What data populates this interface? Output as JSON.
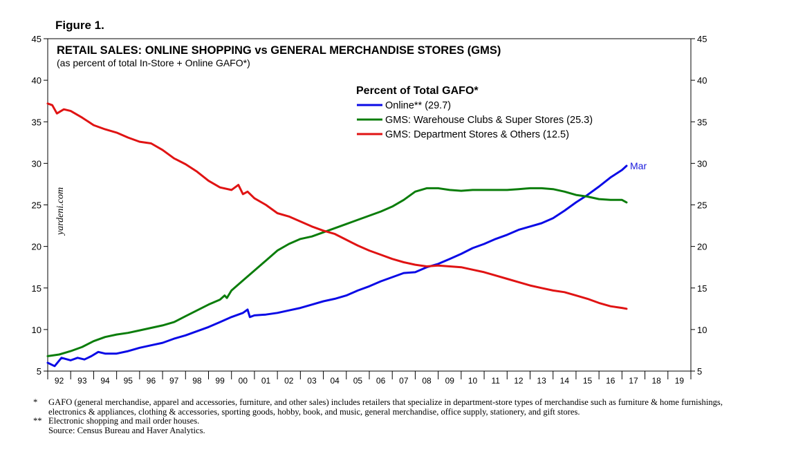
{
  "figure_label": "Figure 1.",
  "chart_data": {
    "type": "line",
    "title": "RETAIL SALES: ONLINE SHOPPING vs GENERAL MERCHANDISE STORES (GMS)",
    "subtitle": "(as percent of total In-Store + Online GAFO*)",
    "legend_title": "Percent of Total GAFO*",
    "legend_position": "top-center",
    "watermark": "yardeni.com",
    "xlabel": "",
    "ylabel": "",
    "xlim": [
      1992,
      2020
    ],
    "ylim": [
      5,
      45
    ],
    "y_ticks": [
      5,
      10,
      15,
      20,
      25,
      30,
      35,
      40,
      45
    ],
    "x_tick_labels": [
      "92",
      "93",
      "94",
      "95",
      "96",
      "97",
      "98",
      "99",
      "00",
      "01",
      "02",
      "03",
      "04",
      "05",
      "06",
      "07",
      "08",
      "09",
      "10",
      "11",
      "12",
      "13",
      "14",
      "15",
      "16",
      "17",
      "18",
      "19"
    ],
    "annotation": {
      "text": "Mar",
      "x": 2017.2,
      "y": 29.7,
      "color": "#1a1adc"
    },
    "series": [
      {
        "name": "Online** (29.7)",
        "color": "#0a0ae6",
        "x": [
          1992.0,
          1992.3,
          1992.6,
          1993.0,
          1993.3,
          1993.6,
          1993.9,
          1994.2,
          1994.5,
          1995.0,
          1995.5,
          1996.0,
          1996.5,
          1997.0,
          1997.5,
          1998.0,
          1998.5,
          1999.0,
          1999.5,
          2000.0,
          2000.5,
          2000.7,
          2000.8,
          2001.0,
          2001.5,
          2002.0,
          2002.5,
          2003.0,
          2003.5,
          2004.0,
          2004.5,
          2005.0,
          2005.5,
          2006.0,
          2006.5,
          2007.0,
          2007.5,
          2008.0,
          2008.5,
          2009.0,
          2009.5,
          2010.0,
          2010.5,
          2011.0,
          2011.5,
          2012.0,
          2012.5,
          2013.0,
          2013.5,
          2014.0,
          2014.5,
          2015.0,
          2015.5,
          2016.0,
          2016.5,
          2017.0,
          2017.2
        ],
        "values": [
          6.0,
          5.6,
          6.6,
          6.3,
          6.6,
          6.4,
          6.8,
          7.3,
          7.1,
          7.1,
          7.4,
          7.8,
          8.1,
          8.4,
          8.9,
          9.3,
          9.8,
          10.3,
          10.9,
          11.5,
          12.0,
          12.4,
          11.5,
          11.7,
          11.8,
          12.0,
          12.3,
          12.6,
          13.0,
          13.4,
          13.7,
          14.1,
          14.7,
          15.2,
          15.8,
          16.3,
          16.8,
          16.9,
          17.5,
          17.9,
          18.5,
          19.1,
          19.8,
          20.3,
          20.9,
          21.4,
          22.0,
          22.4,
          22.8,
          23.4,
          24.3,
          25.3,
          26.2,
          27.2,
          28.3,
          29.2,
          29.7
        ]
      },
      {
        "name": "GMS: Warehouse Clubs & Super Stores (25.3)",
        "color": "#0b7d0b",
        "x": [
          1992.0,
          1992.5,
          1993.0,
          1993.5,
          1994.0,
          1994.5,
          1995.0,
          1995.5,
          1996.0,
          1996.5,
          1997.0,
          1997.5,
          1998.0,
          1998.5,
          1999.0,
          1999.5,
          1999.7,
          1999.8,
          2000.0,
          2000.5,
          2001.0,
          2001.5,
          2002.0,
          2002.5,
          2003.0,
          2003.5,
          2004.0,
          2004.5,
          2005.0,
          2005.5,
          2006.0,
          2006.5,
          2007.0,
          2007.5,
          2008.0,
          2008.5,
          2009.0,
          2009.5,
          2010.0,
          2010.5,
          2011.0,
          2011.5,
          2012.0,
          2012.5,
          2013.0,
          2013.5,
          2014.0,
          2014.5,
          2015.0,
          2015.5,
          2016.0,
          2016.5,
          2017.0,
          2017.2
        ],
        "values": [
          6.8,
          7.0,
          7.4,
          7.9,
          8.6,
          9.1,
          9.4,
          9.6,
          9.9,
          10.2,
          10.5,
          10.9,
          11.6,
          12.3,
          13.0,
          13.6,
          14.1,
          13.8,
          14.7,
          15.9,
          17.1,
          18.3,
          19.5,
          20.3,
          20.9,
          21.2,
          21.7,
          22.2,
          22.7,
          23.2,
          23.7,
          24.2,
          24.8,
          25.6,
          26.6,
          27.0,
          27.0,
          26.8,
          26.7,
          26.8,
          26.8,
          26.8,
          26.8,
          26.9,
          27.0,
          27.0,
          26.9,
          26.6,
          26.2,
          26.0,
          25.7,
          25.6,
          25.6,
          25.3
        ]
      },
      {
        "name": "GMS: Department Stores & Others (12.5)",
        "color": "#e01313",
        "x": [
          1992.0,
          1992.2,
          1992.4,
          1992.7,
          1993.0,
          1993.5,
          1994.0,
          1994.5,
          1995.0,
          1995.5,
          1996.0,
          1996.5,
          1997.0,
          1997.5,
          1998.0,
          1998.5,
          1999.0,
          1999.5,
          2000.0,
          2000.3,
          2000.5,
          2000.7,
          2001.0,
          2001.5,
          2002.0,
          2002.5,
          2003.0,
          2003.5,
          2004.0,
          2004.5,
          2005.0,
          2005.5,
          2006.0,
          2006.5,
          2007.0,
          2007.5,
          2008.0,
          2008.5,
          2009.0,
          2009.5,
          2010.0,
          2010.5,
          2011.0,
          2011.5,
          2012.0,
          2012.5,
          2013.0,
          2013.5,
          2014.0,
          2014.5,
          2015.0,
          2015.5,
          2016.0,
          2016.5,
          2017.0,
          2017.2
        ],
        "values": [
          37.2,
          37.0,
          36.0,
          36.5,
          36.3,
          35.5,
          34.6,
          34.1,
          33.7,
          33.1,
          32.6,
          32.4,
          31.6,
          30.6,
          29.9,
          29.0,
          27.9,
          27.1,
          26.8,
          27.4,
          26.3,
          26.6,
          25.8,
          25.0,
          24.0,
          23.6,
          23.0,
          22.4,
          21.9,
          21.5,
          20.8,
          20.1,
          19.5,
          19.0,
          18.5,
          18.1,
          17.8,
          17.6,
          17.7,
          17.6,
          17.5,
          17.2,
          16.9,
          16.5,
          16.1,
          15.7,
          15.3,
          15.0,
          14.7,
          14.5,
          14.1,
          13.7,
          13.2,
          12.8,
          12.6,
          12.5
        ]
      }
    ]
  },
  "footnotes": [
    {
      "mark": "*",
      "text": "GAFO (general merchandise, apparel and accessories, furniture, and other sales) includes retailers that specialize in department-store types of merchandise such as furniture & home furnishings, electronics & appliances, clothing & accessories, sporting goods, hobby, book, and music, general merchandise, office supply, stationery, and gift stores."
    },
    {
      "mark": "**",
      "text": "Electronic shopping and mail order houses."
    },
    {
      "mark": "",
      "text": "Source: Census Bureau and Haver Analytics."
    }
  ]
}
